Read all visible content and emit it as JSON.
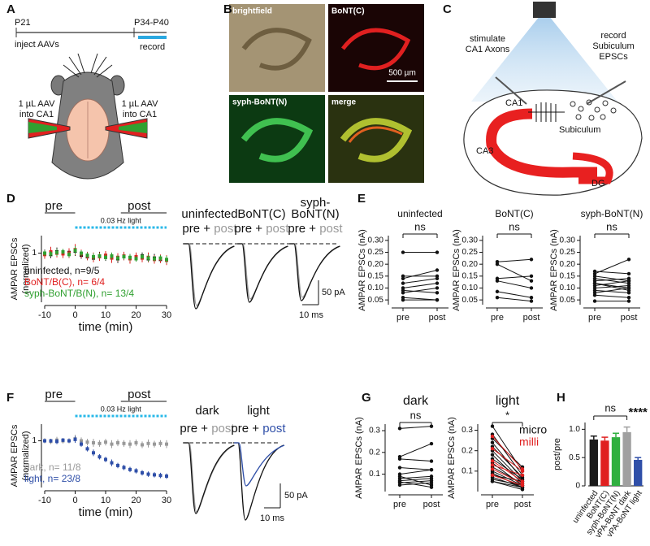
{
  "labels": [
    "A",
    "B",
    "C",
    "D",
    "E",
    "F",
    "G",
    "H"
  ],
  "panel_a": {
    "p21": "P21",
    "p34": "P34-P40",
    "inject": "inject AAVs",
    "record": "record",
    "aav_left": [
      "1 µL AAV",
      "into CA1"
    ],
    "aav_right": [
      "1 µL AAV",
      "into CA1"
    ]
  },
  "panel_b": {
    "tiles": [
      "brightfield",
      "BoNT(C)",
      "syph-BoNT(N)",
      "merge"
    ],
    "scale": "500 µm"
  },
  "panel_c": {
    "stim": [
      "stimulate",
      "CA1 Axons"
    ],
    "rec": [
      "record",
      "Subiculum",
      "EPSCs"
    ],
    "ca1": "CA1",
    "sub": "Subiculum",
    "ca3": "CA3",
    "dg": "DG"
  },
  "traces_d": {
    "headers": [
      [
        "uninfected"
      ],
      [
        "BoNT(C)"
      ],
      [
        "syph-",
        "BoNT(N)"
      ]
    ],
    "pre": "pre + ",
    "post": "post",
    "scale_y": "50 pA",
    "scale_x": "10 ms"
  },
  "traces_f": {
    "headers": [
      "dark",
      "light"
    ],
    "pre": "pre + ",
    "post": "post",
    "scale_y": "50 pA",
    "scale_x": "10 ms"
  },
  "chart_data": [
    {
      "type": "scatter",
      "xlabel": "time (min)",
      "ylabel": [
        "AMPAR EPSCs",
        "(normalized)"
      ],
      "annotations": {
        "pre": "pre",
        "post": "post",
        "light": "0.03 Hz light"
      },
      "x": [
        -10,
        -8,
        -6,
        -4,
        -2,
        0,
        2,
        4,
        6,
        8,
        10,
        12,
        14,
        16,
        18,
        20,
        22,
        24,
        26,
        28,
        30
      ],
      "xlim": [
        -10,
        30
      ],
      "xticks": [
        -10,
        0,
        10,
        20,
        30
      ],
      "ylim": [
        0.3,
        1.25
      ],
      "yticks": [
        1
      ],
      "series": [
        {
          "name": "uninfected, n=9/5",
          "color": "#111111",
          "values": [
            1.0,
            0.98,
            1.02,
            1.0,
            1.01,
            1.03,
            0.97,
            0.95,
            0.93,
            0.96,
            0.94,
            0.95,
            0.92,
            0.95,
            0.93,
            0.94,
            0.96,
            0.92,
            0.93,
            0.91,
            0.9
          ],
          "errors": [
            0.05,
            0.05,
            0.06,
            0.05,
            0.05,
            0.07,
            0.05,
            0.05,
            0.05,
            0.06,
            0.05,
            0.05,
            0.06,
            0.05,
            0.05,
            0.06,
            0.05,
            0.05,
            0.06,
            0.05,
            0.05
          ]
        },
        {
          "name": "BoNT/B(C), n= 6/4",
          "color": "#e02020",
          "values": [
            0.98,
            1.02,
            1.0,
            0.99,
            1.0,
            1.05,
            0.99,
            0.96,
            0.94,
            0.95,
            0.97,
            0.93,
            0.94,
            0.96,
            0.92,
            0.95,
            0.93,
            0.94,
            0.91,
            0.92,
            0.9
          ],
          "errors": [
            0.06,
            0.07,
            0.06,
            0.06,
            0.07,
            0.08,
            0.06,
            0.06,
            0.07,
            0.06,
            0.06,
            0.07,
            0.06,
            0.06,
            0.07,
            0.06,
            0.06,
            0.07,
            0.06,
            0.06,
            0.07
          ]
        },
        {
          "name": "syph-BoNT/B(N), n= 13/4",
          "color": "#30a030",
          "values": [
            1.0,
            0.99,
            1.01,
            1.02,
            0.98,
            1.04,
            1.0,
            0.97,
            0.95,
            0.96,
            0.94,
            0.96,
            0.93,
            0.95,
            0.94,
            0.92,
            0.95,
            0.93,
            0.92,
            0.93,
            0.91
          ],
          "errors": [
            0.04,
            0.04,
            0.05,
            0.04,
            0.04,
            0.06,
            0.04,
            0.04,
            0.05,
            0.04,
            0.04,
            0.05,
            0.04,
            0.04,
            0.05,
            0.04,
            0.04,
            0.05,
            0.04,
            0.04,
            0.05
          ]
        }
      ]
    },
    {
      "type": "line",
      "title": "uninfected",
      "annotation": "ns",
      "ylabel": "AMPAR EPSCs (nA)",
      "categories": [
        "pre",
        "post"
      ],
      "color": "#111111",
      "ylim": [
        0.03,
        0.32
      ],
      "yticks": [
        0.05,
        {
          "value": 0.1,
          "label": "0.10"
        },
        0.15,
        {
          "value": 0.2,
          "label": "0.20"
        },
        0.25,
        {
          "value": 0.3,
          "label": "0.30"
        }
      ],
      "series": [
        {
          "values": [
            0.25,
            0.25
          ]
        },
        {
          "values": [
            0.14,
            0.175
          ]
        },
        {
          "values": [
            0.15,
            0.15
          ]
        },
        {
          "values": [
            0.12,
            0.14
          ]
        },
        {
          "values": [
            0.1,
            0.12
          ]
        },
        {
          "values": [
            0.09,
            0.08
          ]
        },
        {
          "values": [
            0.08,
            0.1
          ]
        },
        {
          "values": [
            0.06,
            0.05
          ]
        },
        {
          "values": [
            0.05,
            0.05
          ]
        }
      ]
    },
    {
      "type": "line",
      "title": "BoNT(C)",
      "annotation": "ns",
      "ylabel": "AMPAR EPSCs (nA)",
      "categories": [
        "pre",
        "post"
      ],
      "color": "#111111",
      "ylim": [
        0.03,
        0.32
      ],
      "yticks": [
        0.05,
        {
          "value": 0.1,
          "label": "0.10"
        },
        0.15,
        {
          "value": 0.2,
          "label": "0.20"
        },
        0.25,
        {
          "value": 0.3,
          "label": "0.30"
        }
      ],
      "series": [
        {
          "values": [
            0.21,
            0.22
          ]
        },
        {
          "values": [
            0.2,
            0.13
          ]
        },
        {
          "values": [
            0.14,
            0.15
          ]
        },
        {
          "values": [
            0.13,
            0.1
          ]
        },
        {
          "values": [
            0.085,
            0.06
          ]
        },
        {
          "values": [
            0.06,
            0.045
          ]
        }
      ]
    },
    {
      "type": "line",
      "title": "syph-BoNT(N)",
      "annotation": "ns",
      "ylabel": "AMPAR EPSCs (nA)",
      "categories": [
        "pre",
        "post"
      ],
      "color": "#111111",
      "ylim": [
        0.03,
        0.32
      ],
      "yticks": [
        0.05,
        {
          "value": 0.1,
          "label": "0.10"
        },
        0.15,
        {
          "value": 0.2,
          "label": "0.20"
        },
        0.25,
        {
          "value": 0.3,
          "label": "0.30"
        }
      ],
      "series": [
        {
          "values": [
            0.17,
            0.16
          ]
        },
        {
          "values": [
            0.16,
            0.22
          ]
        },
        {
          "values": [
            0.15,
            0.13
          ]
        },
        {
          "values": [
            0.14,
            0.12
          ]
        },
        {
          "values": [
            0.13,
            0.14
          ]
        },
        {
          "values": [
            0.12,
            0.1
          ]
        },
        {
          "values": [
            0.12,
            0.09
          ]
        },
        {
          "values": [
            0.11,
            0.13
          ]
        },
        {
          "values": [
            0.1,
            0.11
          ]
        },
        {
          "values": [
            0.09,
            0.08
          ]
        },
        {
          "values": [
            0.08,
            0.1
          ]
        },
        {
          "values": [
            0.07,
            0.06
          ]
        },
        {
          "values": [
            0.045,
            0.045
          ]
        }
      ]
    },
    {
      "type": "scatter",
      "xlabel": "time (min)",
      "ylabel": [
        "AMPAR EPSCs",
        "(normalized)"
      ],
      "annotations": {
        "pre": "pre",
        "post": "post",
        "light": "0.03 Hz light"
      },
      "x": [
        -10,
        -8,
        -6,
        -4,
        -2,
        0,
        2,
        4,
        6,
        8,
        10,
        12,
        14,
        16,
        18,
        20,
        22,
        24,
        26,
        28,
        30
      ],
      "xlim": [
        -10,
        30
      ],
      "xticks": [
        -10,
        0,
        10,
        20,
        30
      ],
      "ylim": [
        0.3,
        1.25
      ],
      "yticks": [
        1
      ],
      "series": [
        {
          "name": "dark, n= 11/8",
          "color": "#999999",
          "values": [
            1.0,
            0.99,
            1.01,
            1.0,
            1.0,
            1.03,
            1.0,
            0.98,
            0.97,
            0.96,
            0.98,
            0.95,
            0.97,
            0.96,
            0.95,
            0.97,
            0.94,
            0.96,
            0.95,
            0.96,
            0.95
          ],
          "errors": [
            0.04,
            0.04,
            0.05,
            0.04,
            0.04,
            0.06,
            0.05,
            0.05,
            0.06,
            0.05,
            0.05,
            0.06,
            0.05,
            0.05,
            0.06,
            0.05,
            0.05,
            0.06,
            0.05,
            0.05,
            0.06
          ]
        },
        {
          "name": "light, n= 23/8",
          "color": "#2f4fa8",
          "values": [
            1.0,
            1.0,
            0.99,
            1.01,
            1.0,
            1.02,
            0.95,
            0.88,
            0.82,
            0.76,
            0.72,
            0.67,
            0.63,
            0.6,
            0.57,
            0.55,
            0.52,
            0.5,
            0.49,
            0.48,
            0.47
          ],
          "errors": [
            0.03,
            0.03,
            0.04,
            0.03,
            0.03,
            0.05,
            0.04,
            0.04,
            0.05,
            0.04,
            0.04,
            0.05,
            0.04,
            0.04,
            0.04,
            0.04,
            0.04,
            0.04,
            0.04,
            0.04,
            0.04
          ]
        }
      ]
    },
    {
      "type": "line",
      "title": "dark",
      "annotation": "ns",
      "ylabel": "AMPAR EPSCs (nA)",
      "categories": [
        "pre",
        "post"
      ],
      "color": "#111111",
      "ylim": [
        0.02,
        0.33
      ],
      "yticks": [
        0.1,
        0.2,
        0.3
      ],
      "series": [
        {
          "values": [
            0.31,
            0.32
          ]
        },
        {
          "values": [
            0.18,
            0.24
          ]
        },
        {
          "values": [
            0.17,
            0.16
          ]
        },
        {
          "values": [
            0.13,
            0.12
          ]
        },
        {
          "values": [
            0.1,
            0.12
          ]
        },
        {
          "values": [
            0.09,
            0.05
          ]
        },
        {
          "values": [
            0.08,
            0.09
          ]
        },
        {
          "values": [
            0.07,
            0.08
          ]
        },
        {
          "values": [
            0.065,
            0.04
          ]
        },
        {
          "values": [
            0.06,
            0.07
          ]
        },
        {
          "values": [
            0.05,
            0.06
          ]
        }
      ]
    },
    {
      "type": "line",
      "title": "light",
      "annotation": "*",
      "ylabel": "AMPAR EPSCs (nA)",
      "categories": [
        "pre",
        "post"
      ],
      "color": "#111111",
      "legend": [
        {
          "name": "micro",
          "color": "#111111"
        },
        {
          "name": "milli",
          "color": "#e02020"
        }
      ],
      "ylim": [
        0.0,
        0.33
      ],
      "yticks": [
        0.1,
        0.2,
        0.3
      ],
      "series": [
        {
          "values": [
            0.32,
            0.1
          ]
        },
        {
          "values": [
            0.28,
            0.08
          ]
        },
        {
          "values": [
            0.26,
            0.12
          ]
        },
        {
          "values": [
            0.24,
            0.06
          ]
        },
        {
          "values": [
            0.22,
            0.07
          ]
        },
        {
          "values": [
            0.2,
            0.05
          ]
        },
        {
          "values": [
            0.18,
            0.04
          ]
        },
        {
          "values": [
            0.16,
            0.06
          ]
        },
        {
          "values": [
            0.14,
            0.03
          ]
        },
        {
          "values": [
            0.12,
            0.04
          ]
        },
        {
          "values": [
            0.1,
            0.03
          ]
        },
        {
          "values": [
            0.09,
            0.02
          ]
        },
        {
          "values": [
            0.08,
            0.05
          ]
        },
        {
          "values": [
            0.07,
            0.02
          ]
        },
        {
          "values": [
            0.06,
            0.03
          ]
        },
        {
          "values": [
            0.05,
            0.02
          ]
        },
        {
          "values": [
            0.05,
            0.01
          ]
        },
        {
          "color": "#e02020",
          "values": [
            0.27,
            0.11
          ]
        },
        {
          "color": "#e02020",
          "values": [
            0.21,
            0.1
          ]
        },
        {
          "color": "#e02020",
          "values": [
            0.15,
            0.05
          ]
        },
        {
          "color": "#e02020",
          "values": [
            0.13,
            0.08
          ]
        },
        {
          "color": "#e02020",
          "values": [
            0.11,
            0.04
          ]
        },
        {
          "color": "#e02020",
          "values": [
            0.08,
            0.03
          ]
        }
      ]
    },
    {
      "type": "bar",
      "ylabel": "post/pre",
      "annotations": {
        "ns": "ns",
        "stars": "****"
      },
      "categories": [
        "uninfected",
        "BoNT(C)",
        "syph-BoNT(N)",
        "vPA-BoNT dark",
        "vPA-BoNT light"
      ],
      "colors": [
        "#1a1a1a",
        "#e02020",
        "#30b040",
        "#a0a0a0",
        "#2f4fa8"
      ],
      "values": [
        0.82,
        0.8,
        0.86,
        0.95,
        0.46
      ],
      "errors": [
        0.06,
        0.06,
        0.07,
        0.09,
        0.04
      ],
      "ylim": [
        0,
        1.12
      ],
      "yticks": [
        0,
        0.5,
        {
          "value": 1,
          "label": "1.0"
        }
      ]
    }
  ]
}
